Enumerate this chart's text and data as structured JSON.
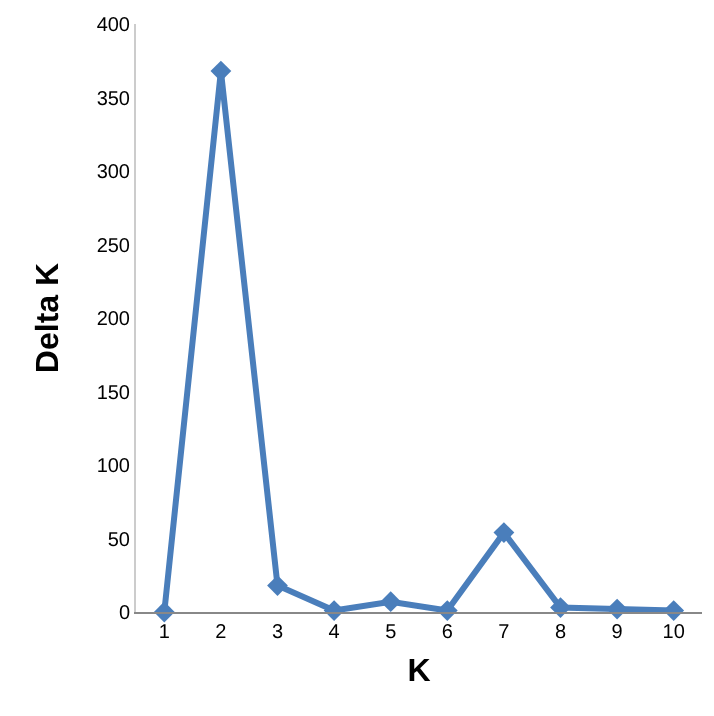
{
  "chart_data": {
    "type": "line",
    "xlabel": "K",
    "ylabel": "Delta K",
    "categories": [
      "1",
      "2",
      "3",
      "4",
      "5",
      "6",
      "7",
      "8",
      "9",
      "10"
    ],
    "series": [
      {
        "color": "#4a7ebb",
        "values": [
          0,
          368,
          18,
          1,
          7,
          1,
          54,
          3,
          2,
          1
        ]
      }
    ],
    "ylim": [
      0,
      400
    ],
    "yticks": [
      0,
      50,
      100,
      150,
      200,
      250,
      300,
      350,
      400
    ],
    "grid": false,
    "marker": "diamond",
    "line_style": "solid"
  }
}
